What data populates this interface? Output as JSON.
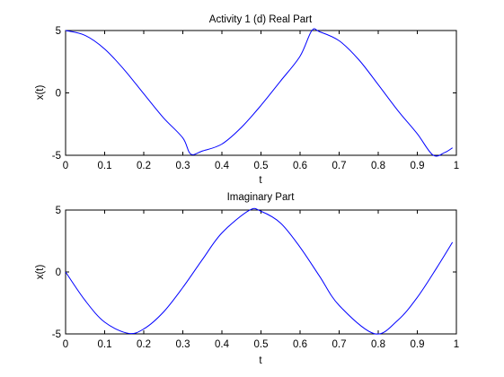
{
  "chart_data": [
    {
      "type": "line",
      "title": "Activity 1 (d) Real Part",
      "xlabel": "t",
      "ylabel": "x(t)",
      "xlim": [
        0,
        1
      ],
      "ylim": [
        -5,
        5
      ],
      "xticks": [
        "0",
        "0.1",
        "0.2",
        "0.3",
        "0.4",
        "0.5",
        "0.6",
        "0.7",
        "0.8",
        "0.9",
        "1"
      ],
      "yticks": [
        "-5",
        "0",
        "5"
      ],
      "grid": false,
      "line_color": "#0000ff",
      "series": [
        {
          "x": [
            0.0,
            0.05,
            0.1,
            0.15,
            0.2,
            0.25,
            0.3,
            0.32,
            0.35,
            0.4,
            0.45,
            0.5,
            0.55,
            0.6,
            0.63,
            0.65,
            0.7,
            0.75,
            0.8,
            0.85,
            0.9,
            0.94,
            0.97,
            0.99
          ],
          "y": [
            5.0,
            4.61,
            3.52,
            1.86,
            -0.07,
            -1.98,
            -3.61,
            -4.9,
            -4.66,
            -4.1,
            -2.76,
            -1.0,
            0.95,
            2.94,
            4.99,
            4.9,
            4.18,
            2.67,
            0.66,
            -1.41,
            -3.28,
            -4.98,
            -4.78,
            -4.4
          ]
        }
      ]
    },
    {
      "type": "line",
      "title": "Imaginary Part",
      "xlabel": "t",
      "ylabel": "x(t)",
      "xlim": [
        0,
        1
      ],
      "ylim": [
        -5,
        5
      ],
      "xticks": [
        "0",
        "0.1",
        "0.2",
        "0.3",
        "0.4",
        "0.5",
        "0.6",
        "0.7",
        "0.8",
        "0.9",
        "1"
      ],
      "yticks": [
        "-5",
        "0",
        "5"
      ],
      "grid": false,
      "line_color": "#0000ff",
      "series": [
        {
          "x": [
            0.0,
            0.05,
            0.1,
            0.16,
            0.2,
            0.25,
            0.3,
            0.35,
            0.4,
            0.47,
            0.5,
            0.55,
            0.6,
            0.65,
            0.7,
            0.79,
            0.85,
            0.9,
            0.95,
            0.99
          ],
          "y": [
            0.0,
            -2.3,
            -4.05,
            -4.95,
            -4.6,
            -3.25,
            -1.25,
            1.0,
            3.15,
            4.98,
            4.9,
            3.95,
            2.0,
            -0.35,
            -2.7,
            -4.98,
            -3.9,
            -2.05,
            0.35,
            2.4
          ]
        }
      ]
    }
  ]
}
